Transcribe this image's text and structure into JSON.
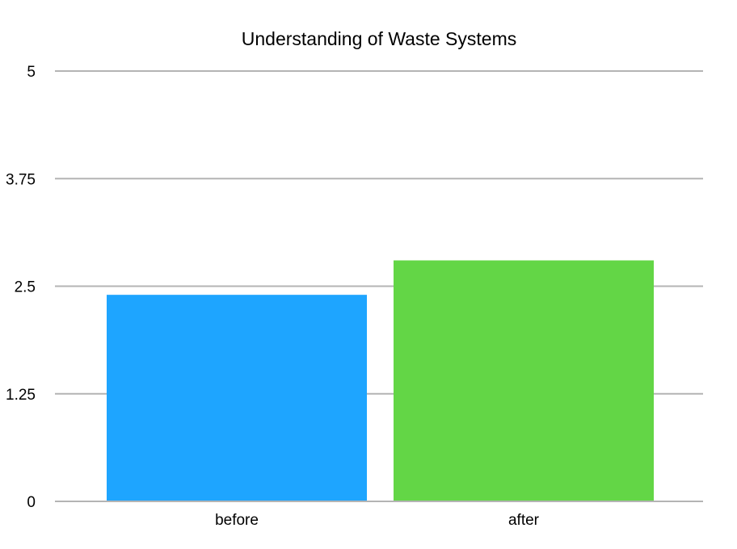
{
  "chart_data": {
    "type": "bar",
    "title": "Understanding of Waste Systems",
    "xlabel": "",
    "ylabel": "",
    "categories": [
      "before",
      "after"
    ],
    "values": [
      2.4,
      2.8
    ],
    "ylim": [
      0,
      5
    ],
    "yticks": [
      "0",
      "1.25",
      "2.5",
      "3.75",
      "5"
    ],
    "ytick_values": [
      0,
      1.25,
      2.5,
      3.75,
      5
    ],
    "grid": true,
    "legend": "none",
    "colors": [
      "#1ea5ff",
      "#63d646"
    ]
  }
}
